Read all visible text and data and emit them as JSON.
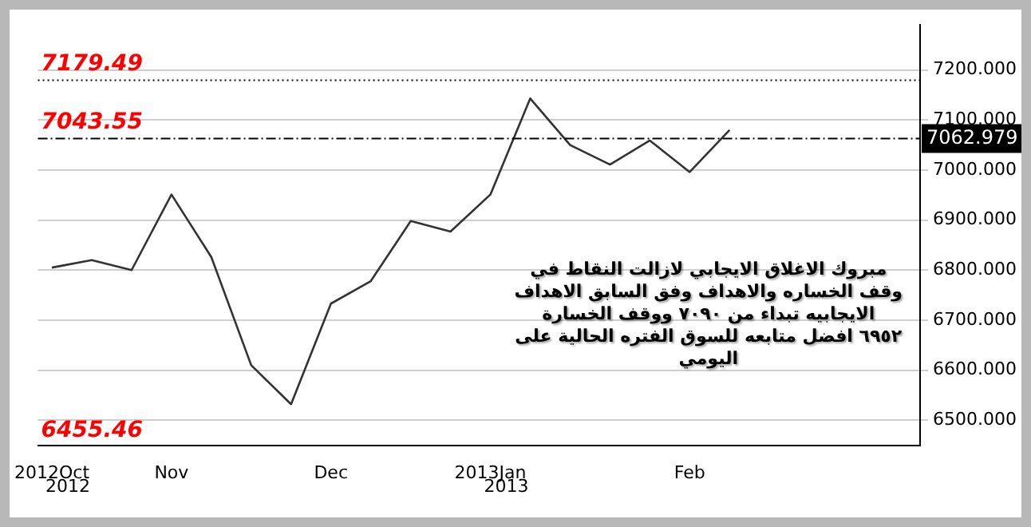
{
  "chart_data": {
    "type": "line",
    "categories": [
      "2012Oct",
      null,
      null,
      "Nov",
      null,
      null,
      null,
      "Dec",
      null,
      null,
      null,
      "2013Jan",
      null,
      null,
      null,
      null,
      "Feb",
      null
    ],
    "series": [
      {
        "color": "#333333",
        "values": [
          6805,
          6820,
          6800,
          6951,
          6826,
          6610,
          6532,
          6733,
          6778,
          6898,
          6877,
          6951,
          7143,
          7050,
          7011,
          7059,
          6996,
          7080
        ]
      }
    ],
    "ylim": [
      6450,
      7290
    ],
    "yticks": [
      {
        "value": 6500,
        "label": "6500.000"
      },
      {
        "value": 6600,
        "label": "6600.000"
      },
      {
        "value": 6700,
        "label": "6700.000"
      },
      {
        "value": 6800,
        "label": "6800.000"
      },
      {
        "value": 6900,
        "label": "6900.000"
      },
      {
        "value": 7000,
        "label": "7000.000"
      },
      {
        "value": 7100,
        "label": "7100.000"
      },
      {
        "value": 7200,
        "label": "7200.000"
      }
    ],
    "ref_lines": [
      {
        "axis": "y",
        "value": 7179.49,
        "label": "7179.49",
        "color": "#000000",
        "line_style": "dotted"
      },
      {
        "axis": "y",
        "value": 7062.979,
        "label": "7062.979",
        "color": "#000000",
        "line_style": "dashdot"
      }
    ],
    "annotations": [
      "7043.55",
      "6455.46",
      "2012",
      "2013",
      "مبروك الاغلاق الايجابي لازالت النقاط في\nوقف الخساره والاهداف وفق السابق الاهداف\nالايجابيه تبداء من ٧٠٩٠ ووقف الخسارة\n٦٩٥٢ افضل متابعه للسوق الفتره الحالية على\nاليومي"
    ],
    "grid": "y",
    "legend": false,
    "marker": "none",
    "line_style": "solid"
  }
}
